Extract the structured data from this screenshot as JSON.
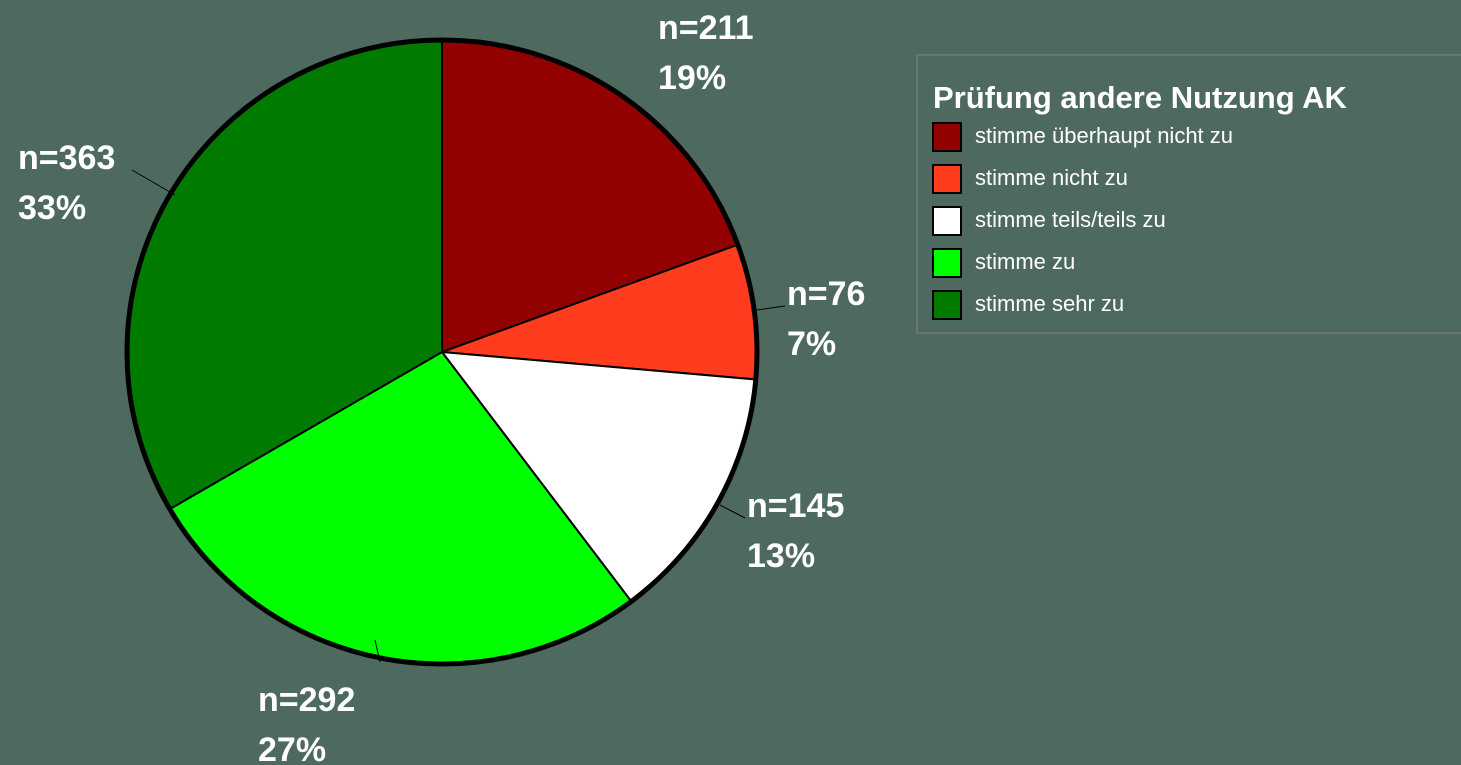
{
  "chart_data": {
    "type": "pie",
    "legend_title": "Prüfung andere Nutzung AK",
    "legend": "top-right",
    "categories": [
      "stimme überhaupt nicht zu",
      "stimme nicht zu",
      "stimme teils/teils zu",
      "stimme zu",
      "stimme sehr zu"
    ],
    "values": [
      211,
      76,
      145,
      292,
      363
    ],
    "value_labels": [
      "n=211",
      "n=76",
      "n=145",
      "n=292",
      "n=363"
    ],
    "percent_labels": [
      "19%",
      "7%",
      "13%",
      "27%",
      "33%"
    ],
    "colors": [
      "#930000",
      "#ff3c1e",
      "#ffffff",
      "#00ff00",
      "#007b00"
    ]
  }
}
